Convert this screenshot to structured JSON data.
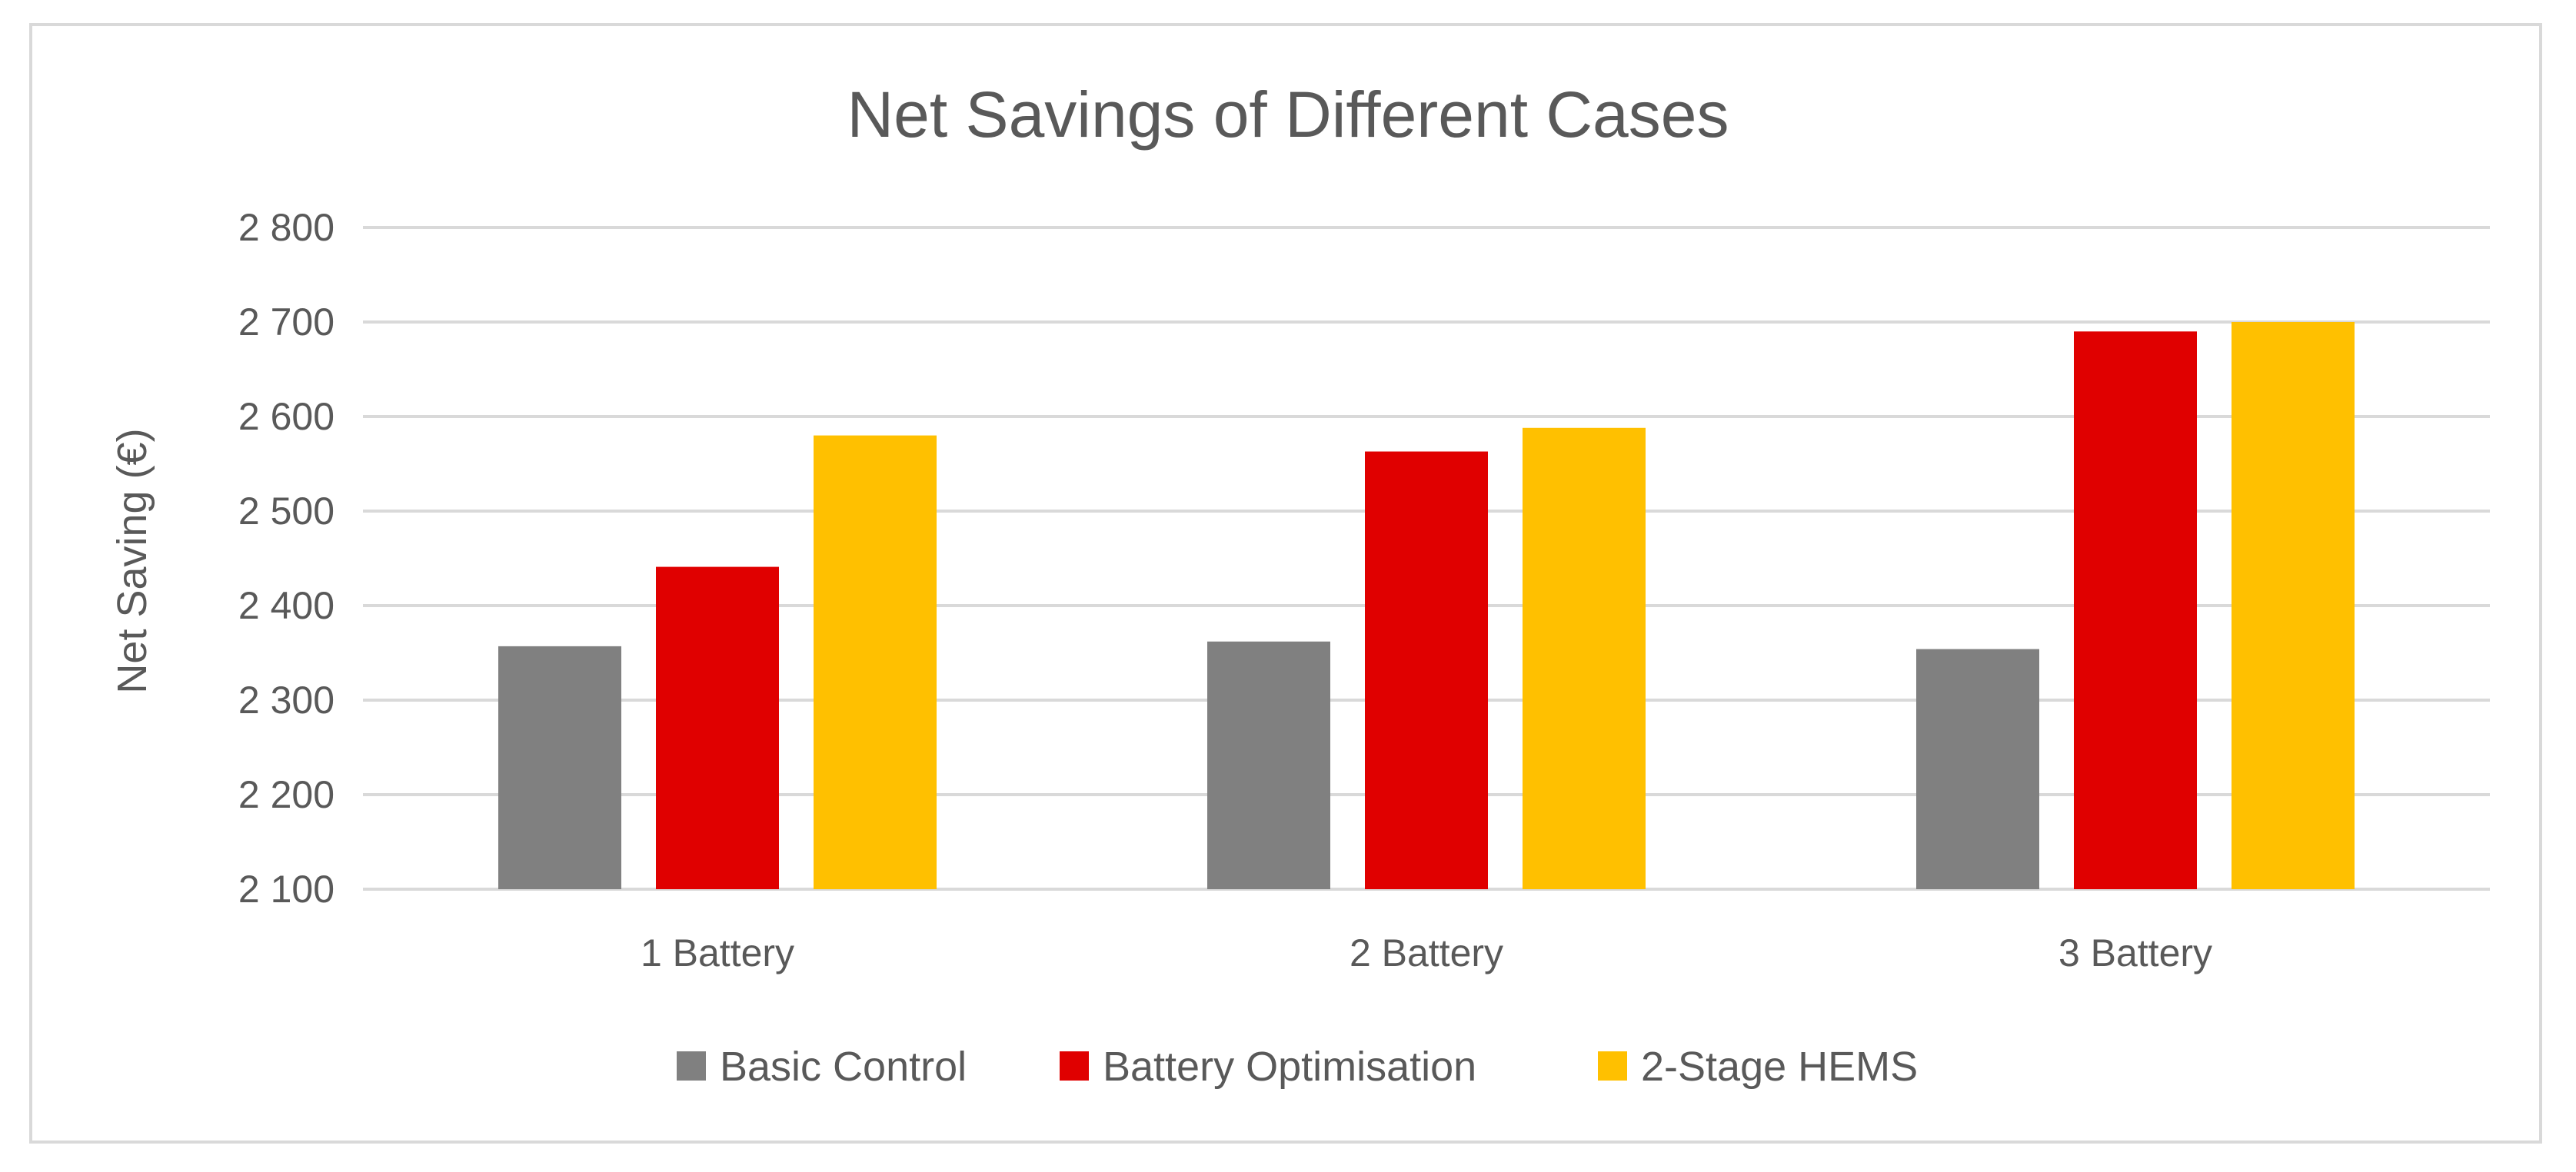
{
  "chart_data": {
    "type": "bar",
    "title": "Net Savings of Different Cases",
    "xlabel": "",
    "ylabel": "Net Saving (€)",
    "ylim": [
      2100,
      2800
    ],
    "yticks": [
      2100,
      2200,
      2300,
      2400,
      2500,
      2600,
      2700,
      2800
    ],
    "ytick_labels": [
      "2 100",
      "2 200",
      "2 300",
      "2 400",
      "2 500",
      "2 600",
      "2 700",
      "2 800"
    ],
    "categories": [
      "1 Battery",
      "2 Battery",
      "3 Battery"
    ],
    "series": [
      {
        "name": "Basic Control",
        "color": "#808080",
        "values": [
          2357,
          2362,
          2354
        ]
      },
      {
        "name": "Battery Optimisation",
        "color": "#e00000",
        "values": [
          2441,
          2563,
          2690
        ]
      },
      {
        "name": "2-Stage HEMS",
        "color": "#ffc000",
        "values": [
          2580,
          2588,
          2700
        ]
      }
    ],
    "grid": true,
    "legend_position": "bottom"
  }
}
